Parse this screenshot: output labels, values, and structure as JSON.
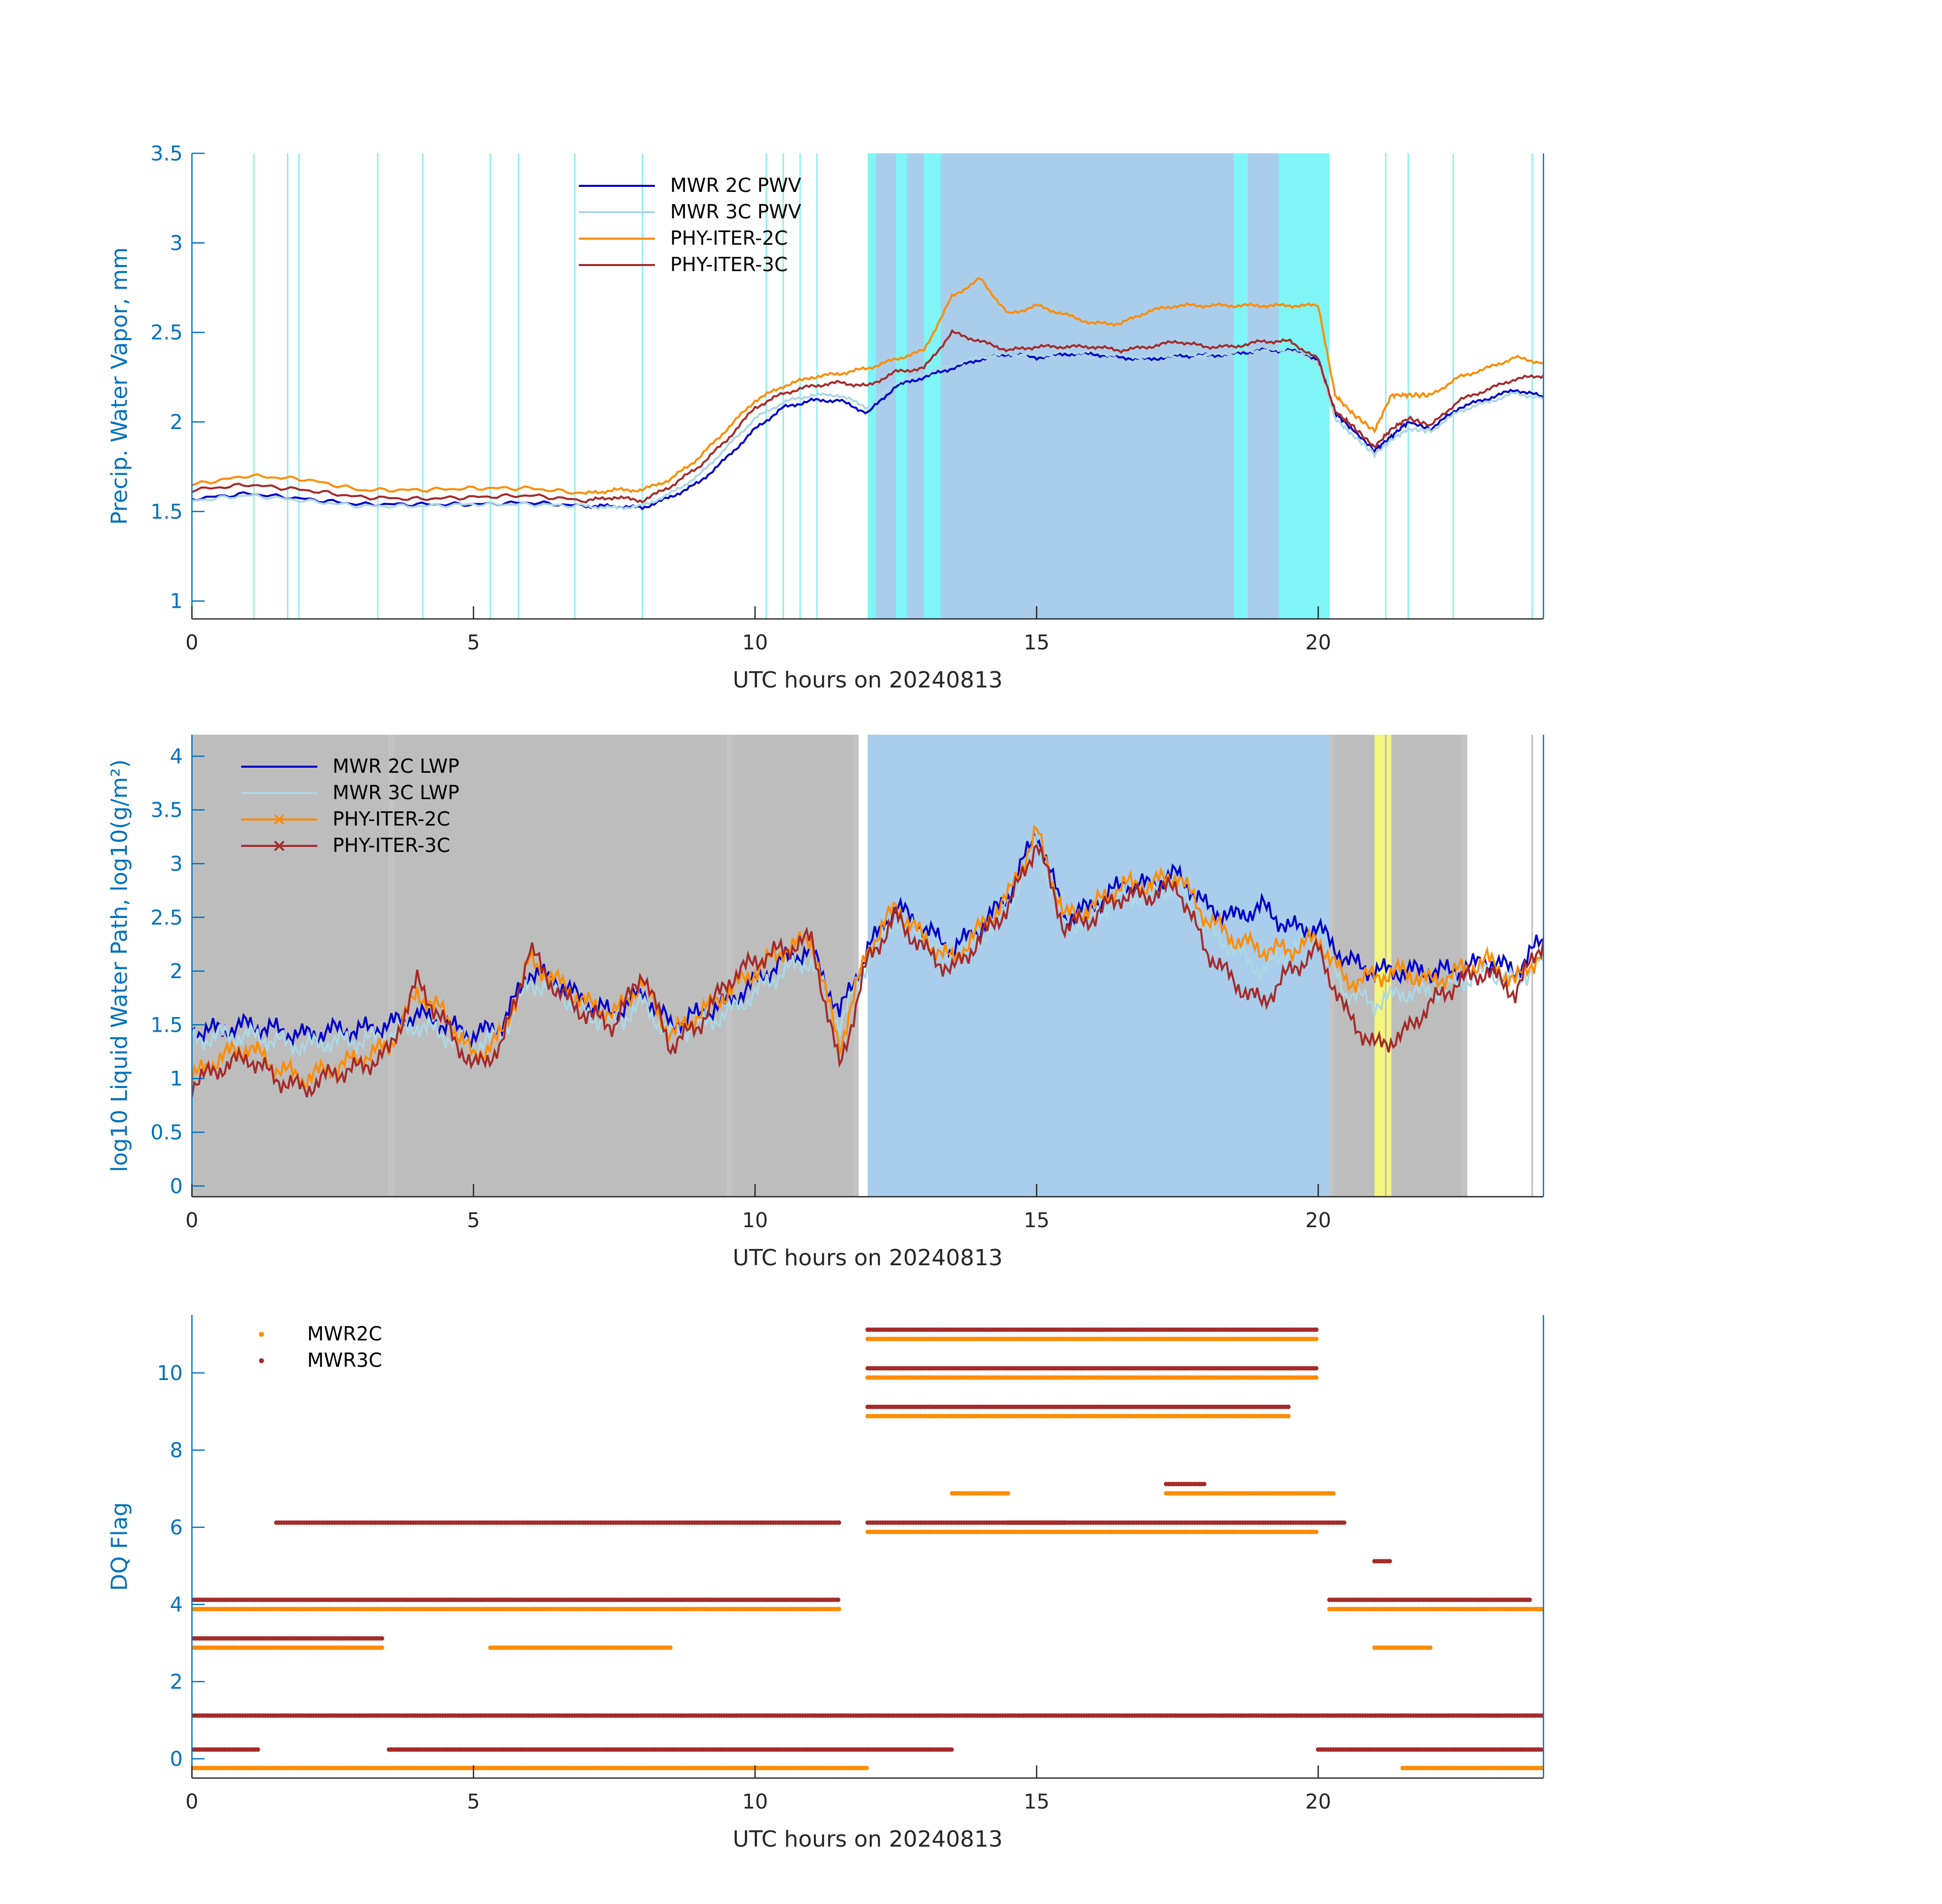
{
  "chart_data": [
    {
      "type": "line",
      "xlabel": "UTC hours on 20240813",
      "ylabel": "Precip. Water Vapor, mm",
      "xlim": [
        0,
        24
      ],
      "ylim": [
        0.9,
        3.5
      ],
      "xticks": [
        "0",
        "5",
        "10",
        "15",
        "20"
      ],
      "yticks": [
        "1",
        "1.5",
        "2",
        "2.5",
        "3",
        "3.5"
      ],
      "legend_position": "top-center",
      "shaded_intervals": [
        {
          "start": 12.0,
          "end": 20.2,
          "color": "#a9cdeb",
          "note_color": "rain/flag band"
        },
        {
          "start": 12.0,
          "end": 12.15,
          "color": "#7ff5f5"
        },
        {
          "start": 12.5,
          "end": 12.7,
          "color": "#7ff5f5"
        },
        {
          "start": 13.0,
          "end": 13.3,
          "color": "#7ff5f5"
        },
        {
          "start": 18.5,
          "end": 18.75,
          "color": "#7ff5f5"
        },
        {
          "start": 19.3,
          "end": 20.2,
          "color": "#7ff5f5"
        }
      ],
      "x": [
        0,
        1,
        2,
        3,
        4,
        5,
        6,
        7,
        7.5,
        8,
        8.5,
        9,
        9.5,
        10,
        10.5,
        11,
        11.5,
        12,
        12.5,
        13,
        13.5,
        14,
        14.5,
        15,
        15.5,
        16,
        16.5,
        17,
        17.5,
        18,
        18.5,
        19,
        19.5,
        20,
        20.3,
        20.6,
        21,
        21.3,
        21.6,
        22,
        22.5,
        23,
        23.5,
        24
      ],
      "series": [
        {
          "name": "MWR 2C PWV",
          "color": "#0000CD",
          "values": [
            1.57,
            1.6,
            1.57,
            1.54,
            1.54,
            1.54,
            1.55,
            1.53,
            1.53,
            1.52,
            1.58,
            1.66,
            1.8,
            1.96,
            2.08,
            2.12,
            2.12,
            2.05,
            2.2,
            2.25,
            2.3,
            2.35,
            2.38,
            2.36,
            2.38,
            2.38,
            2.36,
            2.35,
            2.37,
            2.37,
            2.38,
            2.4,
            2.4,
            2.35,
            2.05,
            1.96,
            1.84,
            1.92,
            2.0,
            1.96,
            2.08,
            2.13,
            2.18,
            2.14
          ]
        },
        {
          "name": "MWR 3C PWV",
          "color": "#ADD8E6",
          "values": [
            1.56,
            1.59,
            1.56,
            1.53,
            1.53,
            1.54,
            1.54,
            1.53,
            1.52,
            1.53,
            1.6,
            1.7,
            1.86,
            2.02,
            2.11,
            2.15,
            2.15,
            2.08,
            2.22,
            2.27,
            2.32,
            2.36,
            2.38,
            2.37,
            2.39,
            2.39,
            2.37,
            2.36,
            2.38,
            2.37,
            2.39,
            2.4,
            2.4,
            2.33,
            2.02,
            1.93,
            1.82,
            1.9,
            1.96,
            1.95,
            2.06,
            2.11,
            2.16,
            2.13
          ]
        },
        {
          "name": "PHY-ITER-2C",
          "color": "#FF8C00",
          "values": [
            1.65,
            1.7,
            1.68,
            1.62,
            1.62,
            1.63,
            1.63,
            1.6,
            1.62,
            1.62,
            1.68,
            1.8,
            1.96,
            2.12,
            2.2,
            2.25,
            2.27,
            2.3,
            2.35,
            2.4,
            2.7,
            2.8,
            2.6,
            2.65,
            2.6,
            2.55,
            2.55,
            2.62,
            2.65,
            2.65,
            2.65,
            2.65,
            2.65,
            2.65,
            2.15,
            2.05,
            1.95,
            2.15,
            2.15,
            2.15,
            2.25,
            2.3,
            2.36,
            2.33
          ]
        },
        {
          "name": "PHY-ITER-3C",
          "color": "#A52A2A",
          "values": [
            1.62,
            1.65,
            1.62,
            1.58,
            1.57,
            1.58,
            1.59,
            1.56,
            1.58,
            1.56,
            1.64,
            1.75,
            1.9,
            2.08,
            2.16,
            2.2,
            2.22,
            2.2,
            2.28,
            2.3,
            2.5,
            2.45,
            2.4,
            2.42,
            2.42,
            2.42,
            2.4,
            2.42,
            2.45,
            2.42,
            2.42,
            2.45,
            2.45,
            2.35,
            2.06,
            1.98,
            1.86,
            1.96,
            2.02,
            1.98,
            2.12,
            2.18,
            2.24,
            2.26
          ]
        }
      ]
    },
    {
      "type": "line",
      "xlabel": "UTC hours on 20240813",
      "ylabel": "log10 Liquid Water Path, log10(g/m²)",
      "xlim": [
        0,
        24
      ],
      "ylim": [
        -0.1,
        4.2
      ],
      "xticks": [
        "0",
        "5",
        "10",
        "15",
        "20"
      ],
      "yticks": [
        "0",
        "0.5",
        "1",
        "1.5",
        "2",
        "2.5",
        "3",
        "3.5",
        "4"
      ],
      "legend_position": "top-left",
      "shaded_intervals": [
        {
          "start": 0.0,
          "end": 3.5,
          "color": "#bdbdbd"
        },
        {
          "start": 3.5,
          "end": 5.5,
          "color": "#bdbdbd",
          "pattern": "striped"
        },
        {
          "start": 5.5,
          "end": 8.3,
          "color": "#bdbdbd",
          "pattern": "striped"
        },
        {
          "start": 8.3,
          "end": 9.5,
          "color": "#bdbdbd"
        },
        {
          "start": 9.5,
          "end": 11.5,
          "color": "#bdbdbd",
          "pattern": "striped"
        },
        {
          "start": 12.0,
          "end": 20.2,
          "color": "#a9cdeb"
        },
        {
          "start": 20.2,
          "end": 22.3,
          "color": "#bdbdbd",
          "pattern": "striped"
        },
        {
          "start": 21.0,
          "end": 21.3,
          "color": "#f5f57f"
        }
      ],
      "x": [
        0,
        0.5,
        1,
        1.5,
        2,
        2.5,
        3,
        3.5,
        4,
        4.5,
        5,
        5.5,
        6,
        6.5,
        7,
        7.5,
        8,
        8.5,
        9,
        9.5,
        10,
        10.5,
        11,
        11.5,
        12,
        12.5,
        13,
        13.5,
        14,
        14.5,
        15,
        15.5,
        16,
        16.5,
        17,
        17.5,
        18,
        18.5,
        19,
        19.5,
        20,
        20.5,
        21,
        21.5,
        22,
        22.5,
        23,
        23.5,
        24
      ],
      "series": [
        {
          "name": "MWR 2C LWP",
          "color": "#0000CD",
          "values": [
            1.45,
            1.45,
            1.5,
            1.45,
            1.4,
            1.45,
            1.45,
            1.5,
            1.6,
            1.5,
            1.4,
            1.5,
            2.0,
            1.9,
            1.7,
            1.6,
            1.8,
            1.5,
            1.6,
            1.7,
            1.9,
            2.1,
            2.2,
            1.6,
            2.2,
            2.6,
            2.4,
            2.2,
            2.4,
            2.7,
            3.3,
            2.5,
            2.6,
            2.8,
            2.8,
            2.9,
            2.6,
            2.5,
            2.6,
            2.4,
            2.4,
            2.1,
            2.0,
            2.0,
            2.0,
            2.0,
            2.1,
            2.0,
            2.3
          ]
        },
        {
          "name": "MWR 3C LWP",
          "color": "#ADD8E6",
          "values": [
            1.35,
            1.4,
            1.4,
            1.35,
            1.3,
            1.35,
            1.35,
            1.4,
            1.5,
            1.4,
            1.3,
            1.4,
            1.9,
            1.8,
            1.6,
            1.5,
            1.7,
            1.4,
            1.5,
            1.6,
            1.8,
            2.0,
            2.1,
            1.5,
            2.1,
            2.5,
            2.3,
            2.1,
            2.3,
            2.6,
            3.2,
            2.4,
            2.5,
            2.7,
            2.7,
            2.8,
            2.4,
            2.2,
            2.0,
            2.2,
            2.3,
            1.8,
            1.7,
            1.8,
            1.8,
            1.9,
            2.0,
            1.9,
            2.1
          ]
        },
        {
          "name": "PHY-ITER-2C",
          "color": "#FF8C00",
          "values": [
            1.0,
            1.2,
            1.3,
            1.1,
            1.0,
            1.1,
            1.2,
            1.3,
            1.8,
            1.6,
            1.2,
            1.4,
            2.1,
            1.9,
            1.7,
            1.6,
            1.9,
            1.4,
            1.6,
            1.8,
            2.0,
            2.2,
            2.3,
            1.3,
            2.2,
            2.6,
            2.3,
            2.1,
            2.4,
            2.7,
            3.3,
            2.5,
            2.6,
            2.8,
            2.8,
            2.9,
            2.5,
            2.3,
            2.2,
            2.2,
            2.3,
            1.9,
            1.95,
            2.0,
            1.9,
            2.0,
            2.1,
            1.9,
            2.2
          ]
        },
        {
          "name": "PHY-ITER-3C",
          "color": "#A52A2A",
          "values": [
            0.95,
            1.1,
            1.2,
            1.0,
            0.9,
            1.05,
            1.1,
            1.25,
            1.9,
            1.5,
            1.1,
            1.3,
            2.2,
            1.8,
            1.6,
            1.5,
            2.0,
            1.3,
            1.5,
            1.9,
            2.1,
            2.2,
            2.3,
            1.1,
            2.1,
            2.5,
            2.2,
            2.0,
            2.3,
            2.6,
            3.2,
            2.4,
            2.5,
            2.7,
            2.7,
            2.8,
            2.2,
            1.9,
            1.7,
            2.0,
            2.2,
            1.6,
            1.3,
            1.4,
            1.7,
            1.9,
            2.0,
            1.8,
            2.3
          ]
        }
      ]
    },
    {
      "type": "scatter",
      "xlabel": "UTC hours on 20240813",
      "ylabel": "DQ Flag",
      "xlim": [
        0,
        24
      ],
      "ylim": [
        -0.5,
        11.5
      ],
      "xticks": [
        "0",
        "5",
        "10",
        "15",
        "20"
      ],
      "yticks": [
        "0",
        "2",
        "4",
        "6",
        "8",
        "10"
      ],
      "legend_position": "top-left",
      "series": [
        {
          "name": "MWR2C",
          "color": "#FF8C00",
          "offset": -0.12,
          "runs": [
            [
              0,
              1.2,
              0
            ],
            [
              1.0,
              12.0,
              0
            ],
            [
              21.5,
              24,
              0
            ],
            [
              0,
              3.3,
              4
            ],
            [
              3.3,
              11.5,
              4
            ],
            [
              20.2,
              24,
              4
            ],
            [
              0,
              3.4,
              3
            ],
            [
              5.3,
              8.5,
              3
            ],
            [
              12.0,
              20.0,
              11
            ],
            [
              12.0,
              20.0,
              10
            ],
            [
              12.0,
              19.5,
              9
            ],
            [
              13.5,
              14.5,
              7
            ],
            [
              17.3,
              20.3,
              7
            ],
            [
              12.0,
              20.0,
              6
            ],
            [
              21.0,
              22.0,
              3
            ]
          ]
        },
        {
          "name": "MWR3C",
          "color": "#A52A2A",
          "offset": 0.12,
          "runs": [
            [
              0,
              1.2,
              0
            ],
            [
              3.5,
              13.5,
              0
            ],
            [
              20.0,
              24,
              0
            ],
            [
              0,
              11.5,
              4
            ],
            [
              20.2,
              23.8,
              4
            ],
            [
              0,
              3.4,
              3
            ],
            [
              12.0,
              20.0,
              11
            ],
            [
              12.0,
              20.0,
              10
            ],
            [
              12.0,
              19.5,
              9
            ],
            [
              17.3,
              18.0,
              7
            ],
            [
              14.5,
              15.5,
              6
            ],
            [
              12.0,
              20.5,
              6
            ],
            [
              21.0,
              21.3,
              5
            ],
            [
              0,
              24,
              1
            ],
            [
              1.5,
              11.5,
              6
            ]
          ]
        }
      ]
    }
  ],
  "legends": [
    {
      "entries": [
        {
          "label": "MWR 2C PWV",
          "color": "#0000CD",
          "marker": "none"
        },
        {
          "label": "MWR 3C PWV",
          "color": "#ADD8E6",
          "marker": "none"
        },
        {
          "label": "PHY-ITER-2C",
          "color": "#FF8C00",
          "marker": "none"
        },
        {
          "label": "PHY-ITER-3C",
          "color": "#A52A2A",
          "marker": "none"
        }
      ]
    },
    {
      "entries": [
        {
          "label": "MWR 2C LWP",
          "color": "#0000CD",
          "marker": "none"
        },
        {
          "label": "MWR 3C LWP",
          "color": "#ADD8E6",
          "marker": "none"
        },
        {
          "label": "PHY-ITER-2C",
          "color": "#FF8C00",
          "marker": "x"
        },
        {
          "label": "PHY-ITER-3C",
          "color": "#A52A2A",
          "marker": "x"
        }
      ]
    },
    {
      "entries": [
        {
          "label": "MWR2C",
          "color": "#FF8C00",
          "marker": "dot"
        },
        {
          "label": "MWR3C",
          "color": "#A52A2A",
          "marker": "dot"
        }
      ]
    }
  ]
}
